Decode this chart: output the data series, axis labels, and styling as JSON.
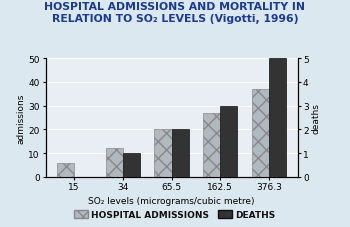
{
  "title_line1": "HOSPITAL ADMISSIONS AND MORTALITY IN",
  "title_line2": "RELATION TO SO₂ LEVELS (Vigotti, 1996)",
  "categories": [
    "15",
    "34",
    "65.5",
    "162.5",
    "376.3"
  ],
  "admissions": [
    6,
    12,
    20,
    27,
    37
  ],
  "deaths": [
    0,
    1,
    2,
    3,
    5
  ],
  "admissions_color": "#b0b8c0",
  "deaths_color": "#333333",
  "xlabel": "SO₂ levels (micrograms/cubic metre)",
  "ylabel_left": "admissions",
  "ylabel_right": "deaths",
  "ylim_left": [
    0,
    50
  ],
  "ylim_right": [
    0,
    5
  ],
  "yticks_left": [
    0,
    10,
    20,
    30,
    40,
    50
  ],
  "yticks_right": [
    0,
    1,
    2,
    3,
    4,
    5
  ],
  "background_color": "#dce8f0",
  "plot_bg_color": "#e8eef4",
  "legend_label_admissions": "HOSPITAL ADMISSIONS",
  "legend_label_deaths": "DEATHS",
  "title_color": "#1a3a9a",
  "axis_label_color": "#000000",
  "grid_color": "#ffffff",
  "bar_width": 0.35
}
